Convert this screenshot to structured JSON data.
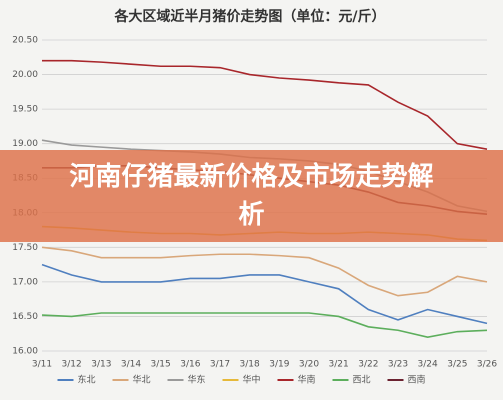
{
  "chart_data": {
    "type": "line",
    "title": "各大区域近半月猪价走势图（单位：元/斤）",
    "categories": [
      "3/11",
      "3/12",
      "3/13",
      "3/14",
      "3/15",
      "3/16",
      "3/17",
      "3/18",
      "3/19",
      "3/20",
      "3/21",
      "3/22",
      "3/23",
      "3/24",
      "3/25",
      "3/26"
    ],
    "ylim": [
      16,
      20.5
    ],
    "yticks": [
      {
        "value": 16,
        "label": "16.00"
      },
      {
        "value": 16.5,
        "label": "16.50"
      },
      {
        "value": 17,
        "label": "17.00"
      },
      {
        "value": 17.5,
        "label": "17.50"
      },
      {
        "value": 18,
        "label": "18.00"
      },
      {
        "value": 18.5,
        "label": "18.50"
      },
      {
        "value": 19,
        "label": "19.00"
      },
      {
        "value": 19.5,
        "label": "19.50"
      },
      {
        "value": 20,
        "label": "20.00"
      },
      {
        "value": 20.5,
        "label": "20.50"
      }
    ],
    "grid": true,
    "series": [
      {
        "name": "东北",
        "color": "#4f7fbf",
        "values": [
          17.25,
          17.1,
          17.0,
          17.0,
          17.0,
          17.05,
          17.05,
          17.1,
          17.1,
          17.0,
          16.9,
          16.6,
          16.45,
          16.6,
          16.5,
          16.4
        ]
      },
      {
        "name": "华北",
        "color": "#d9a77a",
        "values": [
          17.5,
          17.45,
          17.35,
          17.35,
          17.35,
          17.38,
          17.4,
          17.4,
          17.38,
          17.35,
          17.2,
          16.95,
          16.8,
          16.85,
          17.08,
          17.0
        ]
      },
      {
        "name": "华东",
        "color": "#9a9a9a",
        "values": [
          19.05,
          18.98,
          18.95,
          18.92,
          18.9,
          18.88,
          18.85,
          18.8,
          18.78,
          18.75,
          18.7,
          18.6,
          18.45,
          18.3,
          18.1,
          18.02
        ]
      },
      {
        "name": "华中",
        "color": "#e6b93a",
        "values": [
          17.8,
          17.78,
          17.75,
          17.72,
          17.7,
          17.7,
          17.68,
          17.7,
          17.72,
          17.7,
          17.7,
          17.72,
          17.7,
          17.68,
          17.62,
          17.6
        ]
      },
      {
        "name": "华南",
        "color": "#a8262b",
        "values": [
          20.2,
          20.2,
          20.18,
          20.15,
          20.12,
          20.12,
          20.1,
          20.0,
          19.95,
          19.92,
          19.88,
          19.85,
          19.6,
          19.4,
          19.0,
          18.92
        ]
      },
      {
        "name": "西北",
        "color": "#5cae5c",
        "values": [
          16.52,
          16.5,
          16.55,
          16.55,
          16.55,
          16.55,
          16.55,
          16.55,
          16.55,
          16.55,
          16.5,
          16.35,
          16.3,
          16.2,
          16.28,
          16.3
        ]
      },
      {
        "name": "西南",
        "color": "#6b2230",
        "values": [
          18.65,
          18.65,
          18.68,
          18.68,
          18.65,
          18.62,
          18.6,
          18.55,
          18.5,
          18.45,
          18.4,
          18.3,
          18.15,
          18.1,
          18.02,
          17.98
        ]
      }
    ]
  },
  "banner": "河南仔猪最新价格及市场走势解析"
}
